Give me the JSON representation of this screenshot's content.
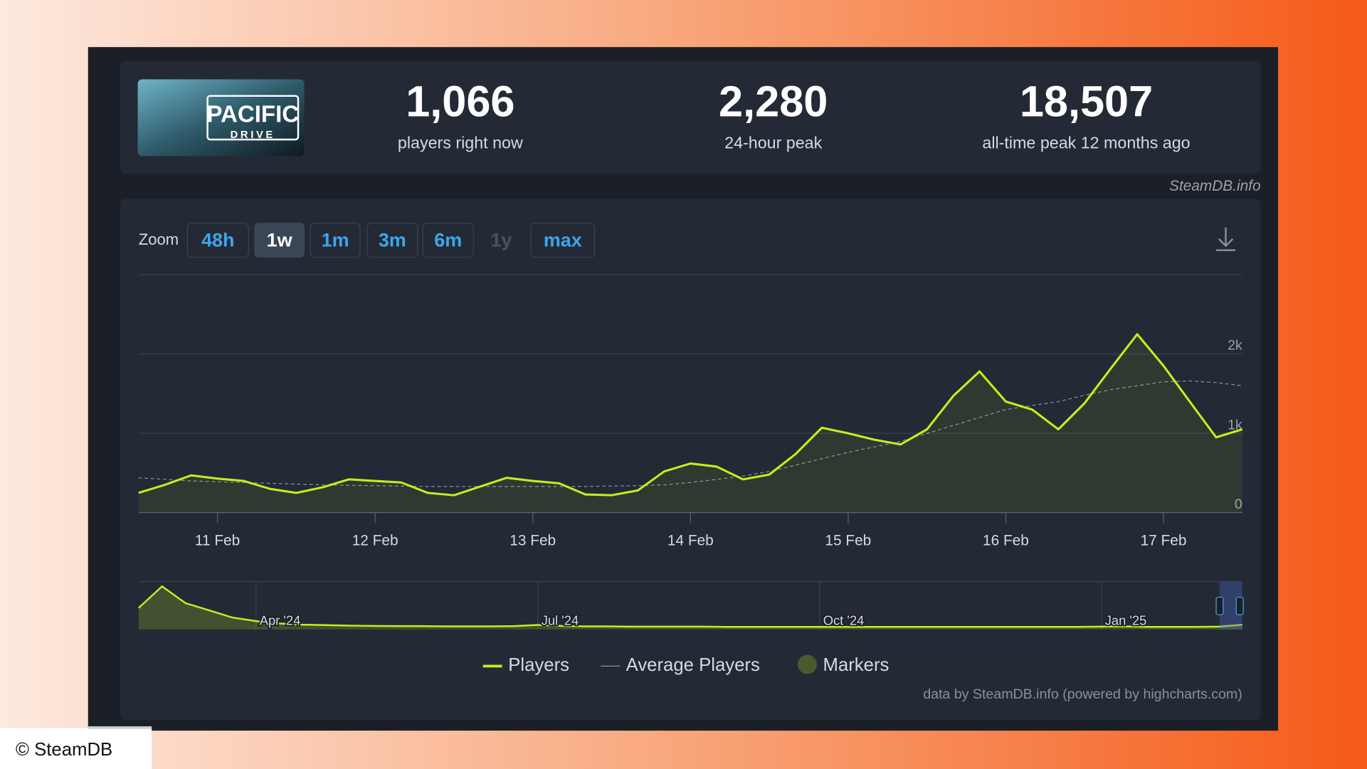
{
  "header": {
    "logo": {
      "line1": "PACIFIC",
      "line2": "DRIVE"
    },
    "stats": [
      {
        "value": "1,066",
        "label": "players right now"
      },
      {
        "value": "2,280",
        "label": "24-hour peak"
      },
      {
        "value": "18,507",
        "label": "all-time peak 12 months ago"
      }
    ],
    "source": "SteamDB.info"
  },
  "zoom": {
    "label": "Zoom",
    "buttons": [
      "48h",
      "1w",
      "1m",
      "3m",
      "6m",
      "1y",
      "max"
    ],
    "active": "1w",
    "disabled": "1y"
  },
  "chart_data": {
    "type": "line",
    "categories": [
      null,
      null,
      null,
      "11 Feb",
      null,
      null,
      null,
      null,
      null,
      "12 Feb",
      null,
      null,
      null,
      null,
      null,
      "13 Feb",
      null,
      null,
      null,
      null,
      null,
      "14 Feb",
      null,
      null,
      null,
      null,
      null,
      "15 Feb",
      null,
      null,
      null,
      null,
      null,
      "16 Feb",
      null,
      null,
      null,
      null,
      null,
      "17 Feb",
      null,
      null,
      null
    ],
    "series": [
      {
        "name": "Players",
        "color": "#c4ee1d",
        "values": [
          250,
          350,
          470,
          430,
          400,
          300,
          250,
          320,
          420,
          400,
          380,
          250,
          220,
          330,
          440,
          400,
          370,
          230,
          220,
          280,
          520,
          620,
          580,
          420,
          480,
          740,
          1070,
          1000,
          920,
          860,
          1050,
          1470,
          1780,
          1400,
          1300,
          1050,
          1380,
          1820,
          2250,
          1850,
          1400,
          950,
          1050
        ]
      },
      {
        "name": "Average Players",
        "color": "#8a8f98",
        "values": [
          440,
          420,
          400,
          390,
          380,
          370,
          360,
          350,
          345,
          340,
          335,
          330,
          330,
          330,
          330,
          330,
          330,
          330,
          335,
          340,
          350,
          380,
          420,
          460,
          520,
          600,
          680,
          760,
          830,
          900,
          1000,
          1100,
          1200,
          1300,
          1350,
          1400,
          1480,
          1550,
          1600,
          1650,
          1660,
          1640,
          1600
        ]
      }
    ],
    "markers_legend": "Markers",
    "ylim": [
      0,
      3000
    ],
    "yticks": [
      0,
      {
        "value": 1000,
        "label": "1k"
      },
      {
        "value": 2000,
        "label": "2k"
      }
    ],
    "grid": true,
    "navigator": {
      "categories": [
        null,
        null,
        null,
        null,
        null,
        "Apr '24",
        null,
        null,
        null,
        null,
        null,
        null,
        null,
        null,
        null,
        null,
        null,
        "Jul '24",
        null,
        null,
        null,
        null,
        null,
        null,
        null,
        null,
        null,
        null,
        null,
        "Oct '24",
        null,
        null,
        null,
        null,
        null,
        null,
        null,
        null,
        null,
        null,
        null,
        "Jan '25",
        null,
        null,
        null,
        null,
        null,
        null
      ],
      "values": [
        9000,
        18000,
        11000,
        8000,
        5000,
        3500,
        2500,
        2000,
        1800,
        1600,
        1500,
        1400,
        1400,
        1300,
        1300,
        1300,
        1400,
        1900,
        1500,
        1300,
        1300,
        1200,
        1200,
        1200,
        1200,
        1100,
        1100,
        1100,
        1100,
        1100,
        1100,
        1100,
        1100,
        1100,
        1100,
        1100,
        1100,
        1100,
        1100,
        1100,
        1100,
        1200,
        1300,
        1100,
        1100,
        1100,
        1200,
        2000
      ],
      "ylim": [
        0,
        20000
      ]
    },
    "credits": "data by SteamDB.info (powered by highcharts.com)"
  },
  "copyright": "© SteamDB"
}
